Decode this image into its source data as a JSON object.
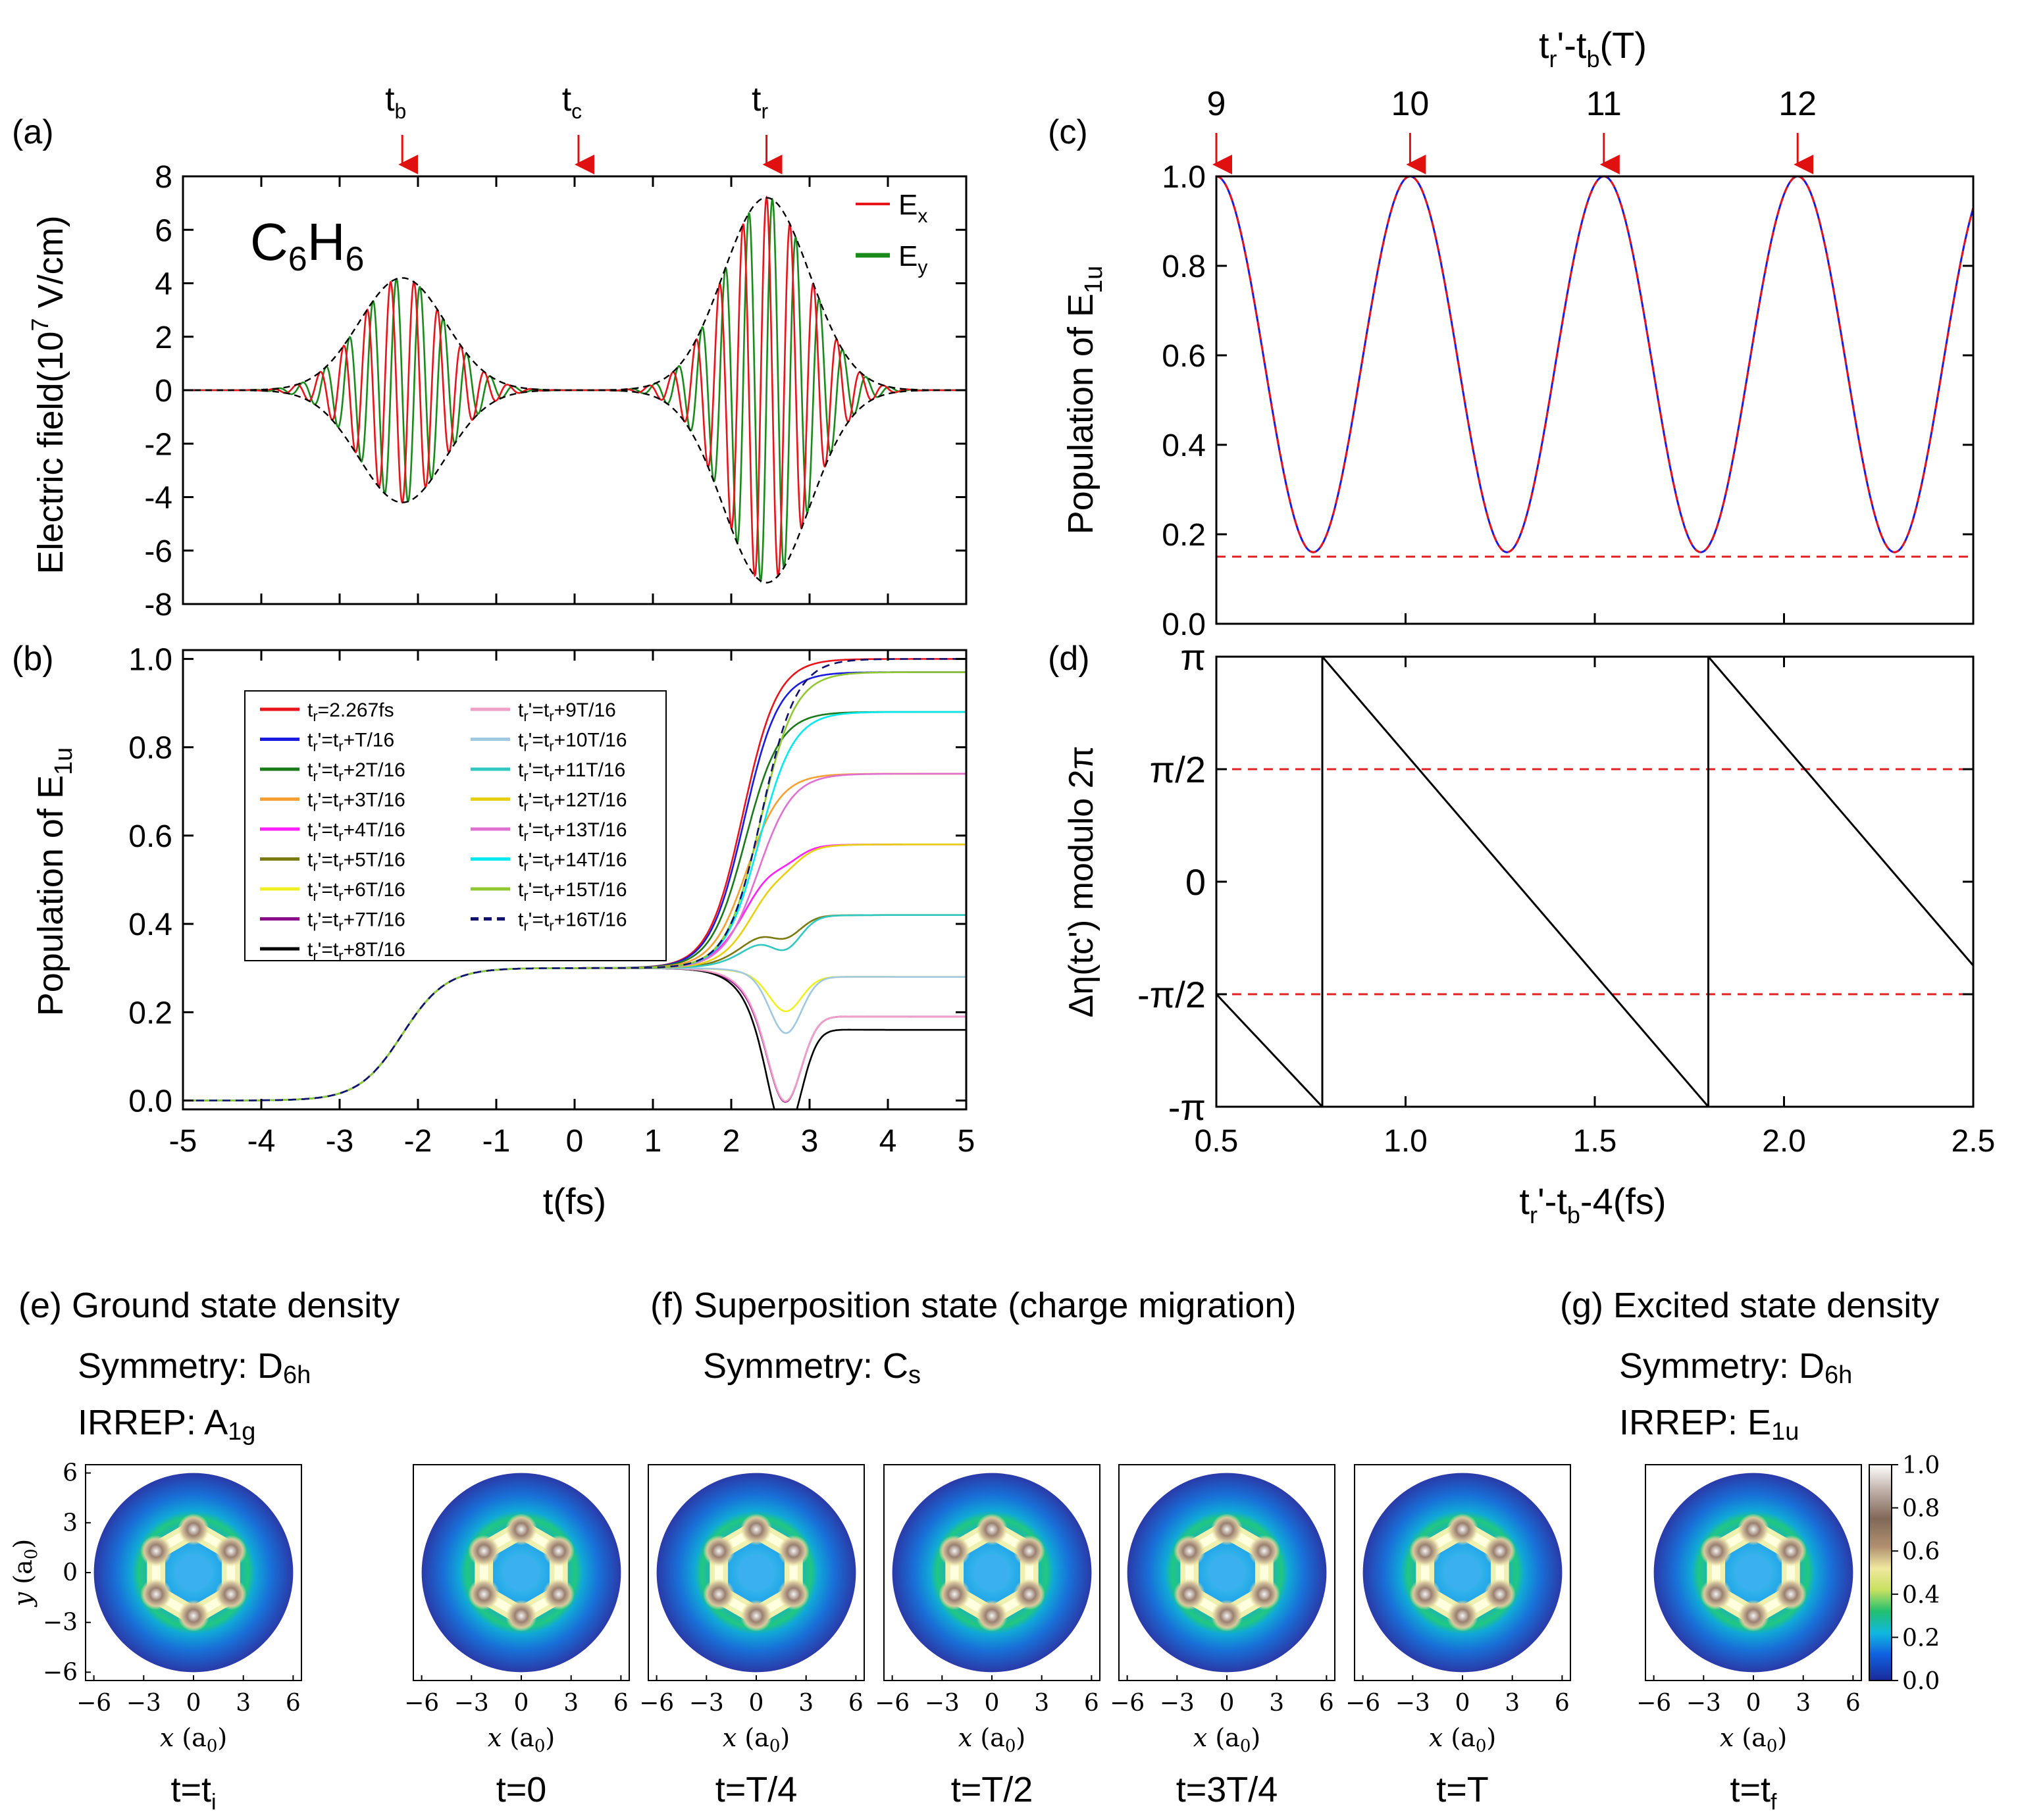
{
  "colors": {
    "red": "#e8141c",
    "green": "#1a8a1a",
    "blue": "#1a1ae0",
    "black": "#000000",
    "refline": "#e02020",
    "arrow": "#e01010"
  },
  "chart_data": [
    {
      "panel": "(a)",
      "type": "line",
      "ylabel": "Electric field(10^7 V/cm)",
      "ylabel_main": "Electric field(10",
      "ylabel_exp": "7",
      "ylabel_tail": " V/cm)",
      "xlim": [
        -5,
        5
      ],
      "ylim": [
        -8,
        8
      ],
      "yticks": [
        "8",
        "6",
        "4",
        "2",
        "0",
        "-2",
        "-4",
        "-6",
        "-8"
      ],
      "ytick_values": [
        8,
        6,
        4,
        2,
        0,
        -2,
        -4,
        -6,
        -8
      ],
      "molecule": {
        "c": "C",
        "n1": "6",
        "h": "H",
        "n2": "6"
      },
      "legend": [
        {
          "name": "E",
          "sub": "x",
          "color": "#e8141c"
        },
        {
          "name": "E",
          "sub": "y",
          "color": "#1a8a1a"
        }
      ],
      "pulses": [
        {
          "center": -2.2,
          "amplitude": 4.2,
          "fwhm_sigma": 0.55
        },
        {
          "center": 2.45,
          "amplitude": 7.2,
          "fwhm_sigma": 0.55
        }
      ],
      "carrier_period_fs": 0.3,
      "markers": [
        {
          "label": "t",
          "sub": "b",
          "x": -2.2
        },
        {
          "label": "t",
          "sub": "c",
          "x": 0.05
        },
        {
          "label": "t",
          "sub": "r",
          "x": 2.45
        }
      ]
    },
    {
      "panel": "(b)",
      "type": "line",
      "xlabel": "t(fs)",
      "ylabel": "Population of E1u",
      "ylabel_main": "Population of E",
      "ylabel_sub": "1u",
      "xlim": [
        -5,
        5
      ],
      "ylim": [
        -0.02,
        1.02
      ],
      "xticks": [
        "-5",
        "-4",
        "-3",
        "-2",
        "-1",
        "0",
        "1",
        "2",
        "3",
        "4",
        "5"
      ],
      "xtick_values": [
        -5,
        -4,
        -3,
        -2,
        -1,
        0,
        1,
        2,
        3,
        4,
        5
      ],
      "yticks": [
        "1.0",
        "0.8",
        "0.6",
        "0.4",
        "0.2",
        "0.0"
      ],
      "ytick_values": [
        1.0,
        0.8,
        0.6,
        0.4,
        0.2,
        0.0
      ],
      "series": [
        {
          "label": "tr=2.267fs",
          "lpre": "t",
          "lsub": "r",
          "ltail": "=2.267fs",
          "color": "#e8141c",
          "final": 1.0,
          "dip": 0.0,
          "dash": false
        },
        {
          "label": "tr'=tr+T/16",
          "tail": "+T/16",
          "color": "#1a1ae0",
          "final": 0.97,
          "dip": 0.0,
          "dash": false
        },
        {
          "label": "tr'=tr+2T/16",
          "tail": "+2T/16",
          "color": "#1a7a1a",
          "final": 0.88,
          "dip": 0.0,
          "dash": false
        },
        {
          "label": "tr'=tr+3T/16",
          "tail": "+3T/16",
          "color": "#f5a030",
          "final": 0.74,
          "dip": 0.0,
          "dash": false
        },
        {
          "label": "tr'=tr+4T/16",
          "tail": "+4T/16",
          "color": "#ff20ff",
          "final": 0.58,
          "dip": 0.02,
          "dash": false
        },
        {
          "label": "tr'=tr+5T/16",
          "tail": "+5T/16",
          "color": "#7a7a10",
          "final": 0.42,
          "dip": 0.04,
          "dash": false
        },
        {
          "label": "tr'=tr+6T/16",
          "tail": "+6T/16",
          "color": "#f0f020",
          "final": 0.28,
          "dip": 0.07,
          "dash": false
        },
        {
          "label": "tr'=tr+7T/16",
          "tail": "+7T/16",
          "color": "#8a0a8a",
          "final": 0.19,
          "dip": 0.15,
          "dash": false
        },
        {
          "label": "tr'=tr+8T/16",
          "tail": "+8T/16",
          "color": "#000000",
          "final": 0.16,
          "dip": 0.18,
          "dash": false
        },
        {
          "label": "tr'=tr+9T/16",
          "tail": "+9T/16",
          "color": "#f0a0c8",
          "final": 0.19,
          "dip": 0.15,
          "dash": false
        },
        {
          "label": "tr'=tr+10T/16",
          "tail": "+10T/16",
          "color": "#a0c8e0",
          "final": 0.28,
          "dip": 0.12,
          "dash": false
        },
        {
          "label": "tr'=tr+11T/16",
          "tail": "+11T/16",
          "color": "#30c8c0",
          "final": 0.42,
          "dip": 0.06,
          "dash": false
        },
        {
          "label": "tr'=tr+12T/16",
          "tail": "+12T/16",
          "color": "#e8d010",
          "final": 0.58,
          "dip": 0.02,
          "dash": false
        },
        {
          "label": "tr'=tr+13T/16",
          "tail": "+13T/16",
          "color": "#e070d0",
          "final": 0.74,
          "dip": 0.0,
          "dash": false
        },
        {
          "label": "tr'=tr+14T/16",
          "tail": "+14T/16",
          "color": "#00e8f0",
          "final": 0.88,
          "dip": 0.0,
          "dash": false
        },
        {
          "label": "tr'=tr+15T/16",
          "tail": "+15T/16",
          "color": "#90c830",
          "final": 0.97,
          "dip": 0.0,
          "dash": false
        },
        {
          "label": "tr'=tr+16T/16",
          "tail": "+16T/16",
          "color": "#101070",
          "final": 1.0,
          "dip": 0.0,
          "dash": true
        }
      ],
      "plateau": 0.3
    },
    {
      "panel": "(c)",
      "type": "line",
      "ylabel": "Population of E1u",
      "ylabel_main": "Population of E",
      "ylabel_sub": "1u",
      "xlim": [
        0.5,
        2.5
      ],
      "ylim": [
        0,
        1.0
      ],
      "toplabel": {
        "a": "t",
        "asub": "r",
        "b": "'-t",
        "bsub": "b",
        "c": "(T)"
      },
      "topticks": [
        "9",
        "10",
        "11",
        "12"
      ],
      "topticks_x": [
        0.5,
        1.012,
        1.524,
        2.036
      ],
      "yticks": [
        "1.0",
        "0.8",
        "0.6",
        "0.4",
        "0.2",
        "0.0"
      ],
      "ytick_values": [
        1.0,
        0.8,
        0.6,
        0.4,
        0.2,
        0.0
      ],
      "period": 0.512,
      "min": 0.16,
      "max": 1.0,
      "refline": 0.15
    },
    {
      "panel": "(d)",
      "type": "line",
      "xlabel": "tr'-tb-4(fs)",
      "xlabel_parts": {
        "a": "t",
        "asub": "r",
        "b": "'-t",
        "bsub": "b",
        "c": "-4(fs)"
      },
      "ylabel": "Δη(tc') modulo 2π",
      "xlim": [
        0.5,
        2.5
      ],
      "ylim": [
        -3.1416,
        3.1416
      ],
      "xticks": [
        "0.5",
        "1.0",
        "1.5",
        "2.0",
        "2.5"
      ],
      "xtick_values": [
        0.5,
        1.0,
        1.5,
        2.0,
        2.5
      ],
      "yticks": [
        "π",
        "π/2",
        "0",
        "-π/2",
        "-π"
      ],
      "ytick_values": [
        3.1416,
        1.5708,
        0,
        -1.5708,
        -3.1416
      ],
      "jumps": [
        0.78,
        1.8
      ],
      "slope_per_fs": -6.16,
      "start_value": -1.57,
      "reflines": [
        1.5708,
        -1.5708
      ]
    }
  ],
  "density": {
    "e": {
      "heading": "(e) Ground state density",
      "sym_label": "Symmetry: ",
      "sym_main": "D",
      "sym_sub": "6h",
      "irrep_label": "IRREP: ",
      "irrep_main": "A",
      "irrep_sub": "1g"
    },
    "f": {
      "heading": "(f) Superposition state (charge migration)",
      "sym_label": "Symmetry: ",
      "sym_main": "C",
      "sym_sub": "s"
    },
    "g": {
      "heading": "(g) Excited state density",
      "sym_label": "Symmetry: ",
      "sym_main": "D",
      "sym_sub": "6h",
      "irrep_label": "IRREP: ",
      "irrep_main": "E",
      "irrep_sub": "1u"
    },
    "ticks": [
      "−6",
      "−3",
      "0",
      "3",
      "6"
    ],
    "tick_values": [
      -6,
      -3,
      0,
      3,
      6
    ],
    "xlabel": "x (a0)",
    "ylabel": "y (a0)",
    "axis_unit_main": "a",
    "axis_unit_sub": "0",
    "captions": [
      {
        "main": "t=t",
        "sub": "i"
      },
      {
        "main": "t=0",
        "sub": ""
      },
      {
        "main": "t=T/4",
        "sub": ""
      },
      {
        "main": "t=T/2",
        "sub": ""
      },
      {
        "main": "t=3T/4",
        "sub": ""
      },
      {
        "main": "t=T",
        "sub": ""
      },
      {
        "main": "t=t",
        "sub": "f"
      }
    ],
    "colorbar": {
      "ticks": [
        "1.0",
        "0.8",
        "0.6",
        "0.4",
        "0.2",
        "0.0"
      ],
      "tick_values": [
        1.0,
        0.8,
        0.6,
        0.4,
        0.2,
        0.0
      ]
    }
  }
}
